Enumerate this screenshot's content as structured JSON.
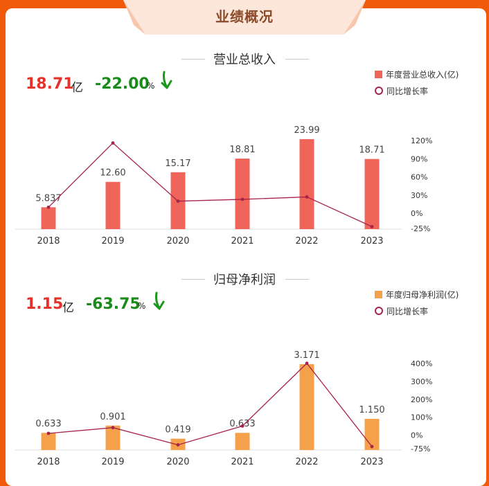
{
  "header": {
    "title": "业绩概况"
  },
  "revenue": {
    "title": "营业总收入",
    "value": "18.71",
    "unit": "亿",
    "growth": "-22.00",
    "growth_unit": "%",
    "legend_bar": "年度营业总收入(亿)",
    "legend_line": "同比增长率"
  },
  "profit": {
    "title": "归母净利润",
    "value": "1.15",
    "unit": "亿",
    "growth": "-63.75",
    "growth_unit": "%",
    "legend_bar": "年度归母净利润(亿)",
    "legend_line": "同比增长率"
  },
  "colors": {
    "revenue_bar": "#f0655a",
    "profit_bar": "#f5a04a",
    "line": "#a8234a",
    "growth_arrow": "#1a9a1a"
  },
  "icons": {
    "growth_arrow": "down-arrow-icon"
  },
  "chart_data": [
    {
      "type": "bar",
      "categories": [
        "2018",
        "2019",
        "2020",
        "2021",
        "2022",
        "2023"
      ],
      "series": [
        {
          "name": "年度营业总收入(亿)",
          "values": [
            5.837,
            12.6,
            15.17,
            18.81,
            23.99,
            18.71
          ],
          "labels": [
            "5.837",
            "12.60",
            "15.17",
            "18.81",
            "23.99",
            "18.71"
          ]
        },
        {
          "name": "同比增长率",
          "type": "line",
          "axis": "right",
          "values": [
            10,
            116,
            20,
            23,
            27,
            -22.0
          ]
        }
      ],
      "ylim_right": [
        -25,
        120
      ],
      "yticks_right": [
        "120%",
        "90%",
        "60%",
        "30%",
        "0%",
        "-25%"
      ]
    },
    {
      "type": "bar",
      "categories": [
        "2018",
        "2019",
        "2020",
        "2021",
        "2022",
        "2023"
      ],
      "series": [
        {
          "name": "年度归母净利润(亿)",
          "values": [
            0.633,
            0.901,
            0.419,
            0.633,
            3.171,
            1.15
          ],
          "labels": [
            "0.633",
            "0.901",
            "0.419",
            "0.633",
            "3.171",
            "1.150"
          ]
        },
        {
          "name": "同比增长率",
          "type": "line",
          "axis": "right",
          "values": [
            10,
            42,
            -54,
            51,
            401,
            -63.75
          ]
        }
      ],
      "ylim_right": [
        -75,
        400
      ],
      "yticks_right": [
        "400%",
        "300%",
        "200%",
        "100%",
        "0%",
        "-75%"
      ]
    }
  ]
}
